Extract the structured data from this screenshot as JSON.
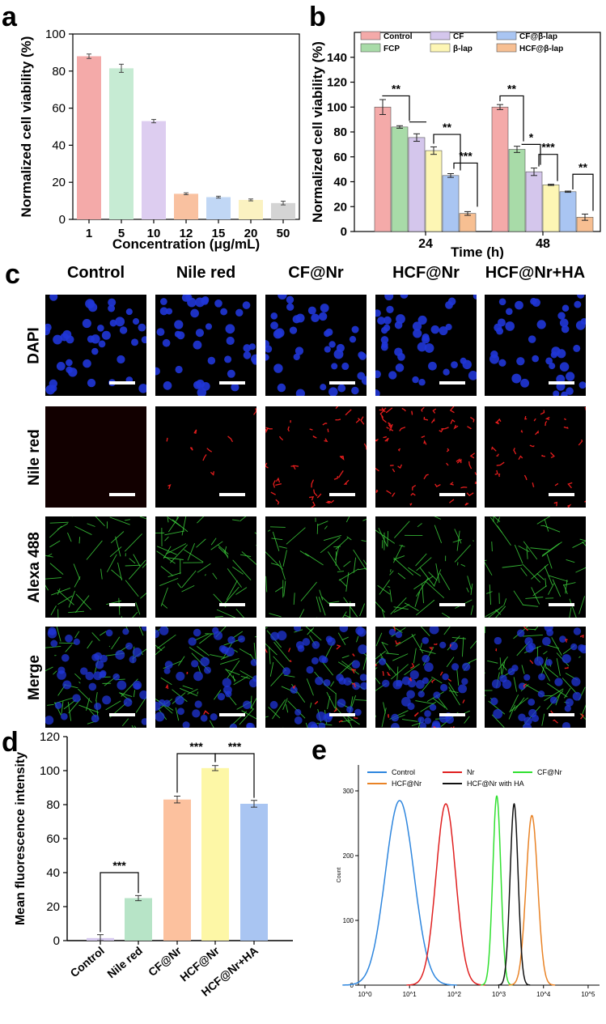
{
  "panels": {
    "a": "a",
    "b": "b",
    "c": "c",
    "d": "d",
    "e": "e"
  },
  "chart_data": [
    {
      "id": "a",
      "type": "bar",
      "xlabel": "Concentration (μg/mL)",
      "ylabel": "Normalized cell viability (%)",
      "categories": [
        "1",
        "5",
        "10",
        "12",
        "15",
        "20",
        "50"
      ],
      "values": [
        88,
        81.5,
        53,
        13.8,
        12,
        10.5,
        8.8
      ],
      "errors": [
        1.2,
        2.2,
        0.9,
        0.5,
        0.5,
        0.5,
        1.0
      ],
      "colors": [
        "#f4aaa9",
        "#c6ebd3",
        "#ddcdf0",
        "#f9c1a0",
        "#c1d7f5",
        "#fbf2c1",
        "#d4d4d4"
      ],
      "ylim": [
        0,
        100
      ],
      "yticks": [
        0,
        20,
        40,
        60,
        80,
        100
      ]
    },
    {
      "id": "b",
      "type": "bar",
      "xlabel": "Time (h)",
      "ylabel": "Normalized cell viability (%)",
      "categories": [
        "24",
        "48"
      ],
      "ylim": [
        0,
        160
      ],
      "yticks": [
        0,
        20,
        40,
        60,
        80,
        100,
        120,
        140
      ],
      "series": [
        {
          "name": "Control",
          "color": "#f4aaa9",
          "values": [
            100,
            100
          ],
          "errors": [
            6,
            2
          ]
        },
        {
          "name": "FCP",
          "color": "#a8dba8",
          "values": [
            84,
            66
          ],
          "errors": [
            1,
            2.5
          ]
        },
        {
          "name": "CF",
          "color": "#d4c6ec",
          "values": [
            75.5,
            48
          ],
          "errors": [
            3,
            3
          ]
        },
        {
          "name": "β-lap",
          "color": "#fdf6b4",
          "values": [
            65,
            37.5
          ],
          "errors": [
            3,
            0.5
          ]
        },
        {
          "name": "CF@β-lap",
          "color": "#a9c5f2",
          "values": [
            45,
            32
          ],
          "errors": [
            1.5,
            0.5
          ]
        },
        {
          "name": "HCF@β-lap",
          "color": "#f7bf92",
          "values": [
            14.5,
            11.5
          ],
          "errors": [
            1.5,
            2.5
          ]
        }
      ],
      "annotations": {
        "g24": [
          "**",
          "**",
          "***"
        ],
        "g48": [
          "**",
          "*",
          "***",
          "**"
        ]
      }
    },
    {
      "id": "d",
      "type": "bar",
      "ylabel": "Mean fluorescence intensity",
      "categories": [
        "Control",
        "Nile red",
        "CF@Nr",
        "HCF@Nr",
        "HCF@Nr+HA"
      ],
      "values": [
        1.5,
        25,
        83,
        101.5,
        80.5
      ],
      "errors": [
        2,
        1.5,
        2,
        1.5,
        2
      ],
      "colors": [
        "#d6c9ef",
        "#b7e4c7",
        "#fcc19e",
        "#fdf7a6",
        "#a9c5f2"
      ],
      "ylim": [
        0,
        120
      ],
      "yticks": [
        0,
        20,
        40,
        60,
        80,
        100,
        120
      ],
      "annotations": [
        "***",
        "***",
        "***"
      ]
    },
    {
      "id": "e",
      "type": "line",
      "ylabel": "Count",
      "xscale": "log",
      "xticks": [
        "10^0",
        "10^1",
        "10^2",
        "10^3",
        "10^4",
        "10^5"
      ],
      "yticks": [
        0,
        100,
        200,
        300
      ],
      "series": [
        {
          "name": "Control",
          "color": "#2e86de",
          "peak_x": 6,
          "peak_y": 285
        },
        {
          "name": "Nr",
          "color": "#e02020",
          "peak_x": 65,
          "peak_y": 280
        },
        {
          "name": "CF@Nr",
          "color": "#30e030",
          "peak_x": 900,
          "peak_y": 292
        },
        {
          "name": "HCF@Nr",
          "color": "#e98326",
          "peak_x": 5500,
          "peak_y": 262
        },
        {
          "name": "HCF@Nr with HA",
          "color": "#111111",
          "peak_x": 2200,
          "peak_y": 280
        }
      ]
    }
  ],
  "microscopy": {
    "columns": [
      "Control",
      "Nile red",
      "CF@Nr",
      "HCF@Nr",
      "HCF@Nr+HA"
    ],
    "rows": [
      "DAPI",
      "Nile red",
      "Alexa 488",
      "Merge"
    ]
  }
}
